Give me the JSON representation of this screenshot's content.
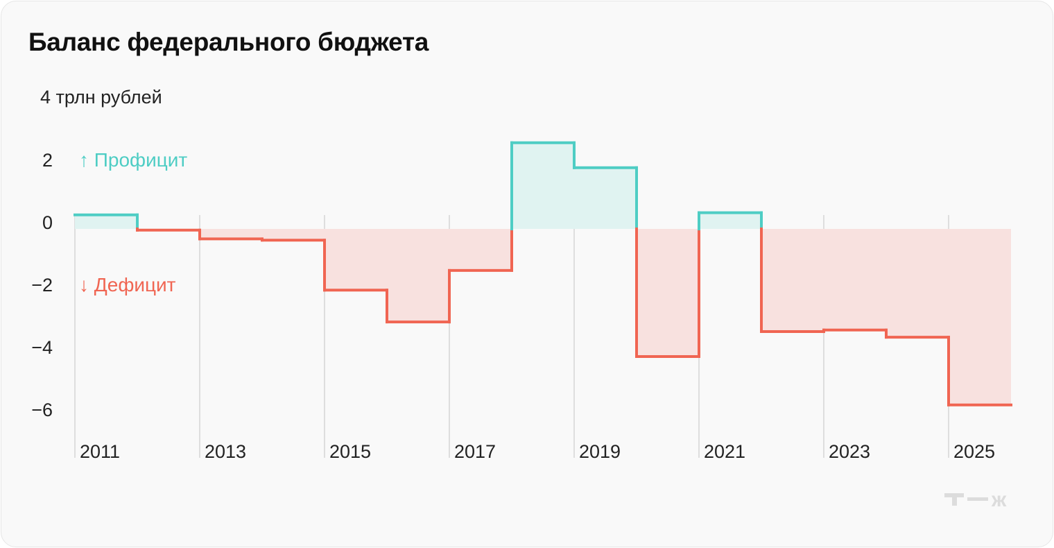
{
  "title": "Баланс федерального бюджета",
  "chart_data": {
    "type": "step-area",
    "title": "Баланс федерального бюджета",
    "unit_label": "4 трлн рублей",
    "ylabel": "трлн рублей",
    "ylim": [
      -6.6,
      4
    ],
    "yticks": [
      2,
      0,
      -2,
      -4,
      -6
    ],
    "ytick_labels": [
      "2",
      "0",
      "−2",
      "−4",
      "−6"
    ],
    "x": [
      2011,
      2012,
      2013,
      2014,
      2015,
      2016,
      2017,
      2018,
      2019,
      2020,
      2021,
      2022,
      2023,
      2024,
      2025
    ],
    "xtick_labels": [
      "2011",
      "2013",
      "2015",
      "2017",
      "2019",
      "2021",
      "2023",
      "2025"
    ],
    "values": [
      0.45,
      -0.04,
      -0.32,
      -0.36,
      -1.96,
      -2.98,
      -1.33,
      2.76,
      1.96,
      -4.09,
      0.52,
      -3.29,
      -3.24,
      -3.47,
      -5.64
    ],
    "legend": {
      "surplus": "↑ Профицит",
      "deficit": "↓ Дефицит"
    },
    "colors": {
      "surplus": "#4ecdc4",
      "surplus_fill": "#e0f3f1",
      "deficit": "#f06552",
      "deficit_fill": "#f8e1df",
      "grid": "#dedede"
    }
  },
  "logo": "т—ж"
}
